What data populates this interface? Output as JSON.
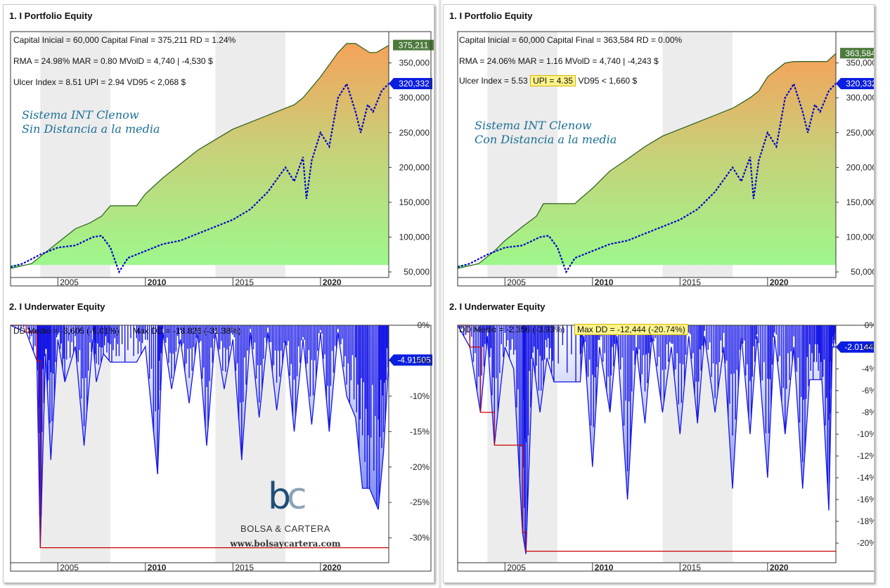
{
  "left": {
    "equity_title": "1. I Portfolio Equity",
    "underwater_title": "2. I Underwater Equity",
    "stats": {
      "line1": "Capital Inicial = 60,000  Capital Final = 375,211  RD = 1.24%",
      "line2": "RMA = 24.98%  MAR = 0.80  MVolD = 4,740 | -4,530 $",
      "line3_a": "Ulcer Index = 8.51  ",
      "upi": "UPI = 2.94",
      "line3_b": "  VD95 < 2,068 $"
    },
    "subtitle_1": "Sistema INT Clenow",
    "subtitle_2": "Sin Distancia a la media",
    "dd_medio": "DD Medio = -3,605 (-6.01%)",
    "max_dd": "Max DD = -18,826 (-31.38%)",
    "logo": {
      "name": "BOLSA & CARTERA",
      "url": "www.bolsaycartera.com"
    }
  },
  "right": {
    "equity_title": "1. I Portfolio Equity",
    "underwater_title": "2. I Underwater Equity",
    "stats": {
      "line1": "Capital Inicial = 60,000  Capital Final = 363,584  RD = 0.00%",
      "line2": "RMA = 24.06%  MAR = 1.16  MVolD = 4,740 | -4,243 $",
      "line3_a": "Ulcer Index = 5.53  ",
      "upi": "UPI = 4.35",
      "line3_b": "  VD95 < 1,660 $"
    },
    "subtitle_1": "Sistema INT Clenow",
    "subtitle_2": "Con Distancia a la media",
    "dd_medio": "DD Medio = -2,356 (-3.93%)",
    "max_dd": "Max DD = -12,444 (-20.74%)"
  },
  "colors": {
    "equity_line": "#2b5d1e",
    "benchmark": "#0000cc",
    "dd_fill": "#1515e6",
    "maxdd_line": "#cc0000",
    "highlight": "#fff48a",
    "subtitle": "#1a6f96",
    "shade": "#ececec"
  },
  "chart_data": [
    {
      "id": "left_equity",
      "type": "area",
      "x_tick_labels": [
        "2005",
        "2010",
        "2015",
        "2020"
      ],
      "x_ticks": [
        2005,
        2010,
        2015,
        2020
      ],
      "xlim": [
        2002.3,
        2023.9
      ],
      "ylim": [
        42000,
        395000
      ],
      "y_tick_labels": [
        "50,000",
        "100,000",
        "150,000",
        "200,000",
        "250,000",
        "300,000",
        "350,000"
      ],
      "y_ticks": [
        50000,
        100000,
        150000,
        200000,
        250000,
        300000,
        350000
      ],
      "shaded_years": [
        [
          2004,
          2008
        ],
        [
          2014,
          2018
        ]
      ],
      "last_value_labels": [
        "375,211",
        "320,332"
      ],
      "series": [
        {
          "role": "equity",
          "x": [
            2002.3,
            2003.5,
            2004.4,
            2005,
            2006,
            2006.8,
            2007.5,
            2008,
            2009.5,
            2010,
            2011,
            2012,
            2013,
            2014,
            2015,
            2016,
            2017,
            2018,
            2018.5,
            2019,
            2020,
            2021,
            2021.5,
            2022,
            2022.8,
            2023.2,
            2023.9
          ],
          "y": [
            55000,
            62000,
            80000,
            92000,
            112000,
            120000,
            130000,
            145000,
            145000,
            162000,
            185000,
            205000,
            225000,
            240000,
            255000,
            265000,
            275000,
            285000,
            290000,
            300000,
            330000,
            365000,
            378000,
            378000,
            365000,
            365000,
            375211
          ]
        },
        {
          "role": "benchmark",
          "x": [
            2002.3,
            2003,
            2004,
            2005,
            2006,
            2007,
            2007.5,
            2008,
            2008.5,
            2009,
            2010,
            2011,
            2012,
            2013,
            2014,
            2015,
            2016,
            2017,
            2018,
            2018.5,
            2019,
            2019.2,
            2019.5,
            2020,
            2020.5,
            2021,
            2021.5,
            2022,
            2022.3,
            2022.7,
            2023,
            2023.5,
            2023.9
          ],
          "y": [
            57000,
            62000,
            75000,
            85000,
            88000,
            100000,
            102000,
            85000,
            50000,
            70000,
            80000,
            90000,
            95000,
            105000,
            115000,
            125000,
            140000,
            165000,
            200000,
            180000,
            215000,
            155000,
            210000,
            250000,
            230000,
            300000,
            320000,
            280000,
            250000,
            290000,
            280000,
            310000,
            320332
          ]
        }
      ]
    },
    {
      "id": "left_underwater",
      "type": "area",
      "x_tick_labels": [
        "2005",
        "2010",
        "2015",
        "2020"
      ],
      "x_ticks": [
        2005,
        2010,
        2015,
        2020
      ],
      "xlim": [
        2002.3,
        2023.9
      ],
      "ylim": [
        -33.5,
        0
      ],
      "y_tick_labels": [
        "0%",
        "-5%",
        "-10%",
        "-15%",
        "-20%",
        "-25%",
        "-30%"
      ],
      "y_ticks": [
        0,
        -5,
        -10,
        -15,
        -20,
        -25,
        -30
      ],
      "shaded_years": [
        [
          2004,
          2008
        ],
        [
          2014,
          2018
        ]
      ],
      "last_value_label": "-4.91505",
      "max_dd_percent": -31.38,
      "series": [
        {
          "role": "drawdown",
          "x": [
            2002.3,
            2003.2,
            2003.8,
            2004,
            2004.3,
            2004.6,
            2005,
            2005.4,
            2006,
            2006.5,
            2007,
            2007.2,
            2007.6,
            2008,
            2008.5,
            2009.5,
            2010,
            2010.7,
            2011,
            2011.5,
            2012,
            2012.5,
            2013,
            2013.5,
            2014,
            2014.5,
            2015,
            2015.5,
            2016,
            2016.5,
            2017,
            2017.5,
            2018,
            2018.5,
            2019,
            2019.5,
            2020,
            2020.5,
            2021,
            2021.5,
            2022,
            2022.4,
            2022.8,
            2023.3,
            2023.6,
            2023.9
          ],
          "y": [
            0,
            -1,
            -5,
            -31.4,
            -4,
            -19,
            -2,
            -8,
            -3,
            -17,
            -2,
            -8,
            -4,
            -5.2,
            -5.2,
            -5.2,
            -3,
            -21,
            -1,
            -9,
            -2,
            -11,
            -1,
            -17,
            -1,
            -9,
            -2,
            -19,
            -1,
            -13,
            -1,
            -12,
            -2,
            -15,
            -2,
            -14,
            -1,
            -15,
            -1,
            -10,
            -13,
            -23,
            -23,
            -26,
            -18,
            -4.9
          ]
        }
      ]
    },
    {
      "id": "right_equity",
      "type": "area",
      "x_tick_labels": [
        "2005",
        "2010",
        "2015",
        "2020"
      ],
      "x_ticks": [
        2005,
        2010,
        2015,
        2020
      ],
      "xlim": [
        2002.3,
        2023.9
      ],
      "ylim": [
        42000,
        395000
      ],
      "y_tick_labels": [
        "50,000",
        "100,000",
        "150,000",
        "200,000",
        "250,000",
        "300,000",
        "350,000"
      ],
      "y_ticks": [
        50000,
        100000,
        150000,
        200000,
        250000,
        300000,
        350000
      ],
      "shaded_years": [
        [
          2004,
          2008
        ],
        [
          2014,
          2018
        ]
      ],
      "last_value_labels": [
        "363,584",
        "320,332"
      ],
      "series": [
        {
          "role": "equity",
          "x": [
            2002.3,
            2003.5,
            2004.4,
            2005,
            2006,
            2006.8,
            2007.2,
            2009,
            2009.3,
            2010,
            2011,
            2012,
            2013,
            2014,
            2015,
            2016,
            2017,
            2018,
            2019,
            2019.5,
            2020,
            2021,
            2021.5,
            2022,
            2022.8,
            2023.4,
            2023.9
          ],
          "y": [
            55000,
            62000,
            80000,
            95000,
            115000,
            130000,
            148000,
            148000,
            155000,
            170000,
            195000,
            212000,
            230000,
            245000,
            255000,
            265000,
            275000,
            285000,
            300000,
            310000,
            330000,
            350000,
            352000,
            352000,
            352000,
            352000,
            363584
          ]
        },
        {
          "role": "benchmark",
          "x": [
            2002.3,
            2003,
            2004,
            2005,
            2006,
            2007,
            2007.5,
            2008,
            2008.5,
            2009,
            2010,
            2011,
            2012,
            2013,
            2014,
            2015,
            2016,
            2017,
            2018,
            2018.5,
            2019,
            2019.2,
            2019.5,
            2020,
            2020.5,
            2021,
            2021.5,
            2022,
            2022.3,
            2022.7,
            2023,
            2023.5,
            2023.9
          ],
          "y": [
            57000,
            62000,
            75000,
            85000,
            88000,
            100000,
            102000,
            85000,
            50000,
            70000,
            80000,
            90000,
            95000,
            105000,
            115000,
            125000,
            140000,
            165000,
            200000,
            180000,
            215000,
            155000,
            210000,
            250000,
            230000,
            300000,
            320000,
            280000,
            250000,
            290000,
            280000,
            310000,
            320332
          ]
        }
      ]
    },
    {
      "id": "right_underwater",
      "type": "area",
      "x_tick_labels": [
        "2005",
        "2010",
        "2015",
        "2020"
      ],
      "x_ticks": [
        2005,
        2010,
        2015,
        2020
      ],
      "xlim": [
        2002.3,
        2023.9
      ],
      "ylim": [
        -21.8,
        0
      ],
      "y_tick_labels": [
        "0%",
        "-2%",
        "-4%",
        "-6%",
        "-8%",
        "-10%",
        "-12%",
        "-14%",
        "-16%",
        "-18%",
        "-20%"
      ],
      "y_ticks": [
        0,
        -2,
        -4,
        -6,
        -8,
        -10,
        -12,
        -14,
        -16,
        -18,
        -20
      ],
      "shaded_years": [
        [
          2004,
          2008
        ],
        [
          2014,
          2018
        ]
      ],
      "last_value_label": "-2.01443",
      "max_dd_percent": -20.74,
      "series": [
        {
          "role": "drawdown",
          "x": [
            2002.3,
            2003,
            2003.6,
            2004,
            2004.4,
            2005,
            2005.5,
            2006,
            2006.2,
            2006.6,
            2007,
            2007.4,
            2007.8,
            2009.3,
            2009.5,
            2010,
            2010.4,
            2011,
            2011.4,
            2012,
            2012.5,
            2013,
            2013.4,
            2014,
            2014.5,
            2015,
            2015.5,
            2016,
            2016.4,
            2017,
            2017.5,
            2018,
            2018.5,
            2019,
            2019.4,
            2020,
            2020.4,
            2021,
            2021.5,
            2022,
            2022.4,
            2022.8,
            2023.1,
            2023.5,
            2023.7,
            2023.9
          ],
          "y": [
            0,
            -2,
            -8,
            -1,
            -11,
            -2,
            -4,
            -19,
            -21,
            -3,
            -8,
            -3,
            -5.2,
            -5.2,
            -1,
            -13,
            -2,
            -8,
            -1,
            -16,
            -2,
            -9,
            -1,
            -8,
            -2,
            -10,
            -1,
            -9,
            -1,
            -8,
            -2,
            -15,
            -1,
            -10,
            -1,
            -14,
            -1,
            -10,
            -2,
            -15,
            -5,
            -5,
            -5,
            -17,
            -2,
            -2
          ]
        }
      ]
    }
  ]
}
